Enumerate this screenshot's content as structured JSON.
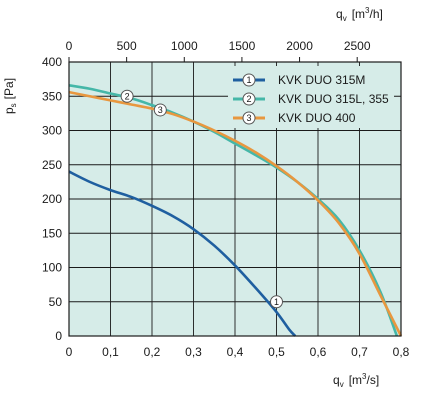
{
  "chart_data": {
    "type": "line",
    "colors": {
      "plot_bg": "#d6ece8",
      "grid": "#1a1a1a"
    },
    "x_bottom": {
      "label": "q",
      "label_sub": "v",
      "unit": "[m",
      "unit_sup": "3",
      "unit_end": "/s]",
      "range": [
        0,
        0.8
      ],
      "ticks": [
        0,
        0.1,
        0.2,
        0.3,
        0.4,
        0.5,
        0.6,
        0.7,
        0.8
      ],
      "tick_labels": [
        "0",
        "0,1",
        "0,2",
        "0,3",
        "0,4",
        "0,5",
        "0,6",
        "0,7",
        "0,8"
      ]
    },
    "x_top": {
      "label": "q",
      "label_sub": "v",
      "unit": "[m",
      "unit_sup": "3",
      "unit_end": "/h]",
      "range": [
        0,
        2880
      ],
      "ticks": [
        0,
        500,
        1000,
        1500,
        2000,
        2500
      ],
      "tick_labels": [
        "0",
        "500",
        "1000",
        "1500",
        "2000",
        "2500"
      ]
    },
    "y": {
      "label": "p",
      "label_sub": "s",
      "unit": "[Pa]",
      "range": [
        0,
        400
      ],
      "ticks": [
        0,
        50,
        100,
        150,
        200,
        250,
        300,
        350,
        400
      ],
      "tick_labels": [
        "0",
        "50",
        "100",
        "150",
        "200",
        "250",
        "300",
        "350",
        "400"
      ]
    },
    "grid": true,
    "legend_position": "top-right",
    "series": [
      {
        "marker": "1",
        "name": "KVK DUO 315M",
        "color": "#1f5fa0",
        "marker_at": [
          0.5,
          50
        ],
        "points": [
          [
            0,
            240
          ],
          [
            0.05,
            225
          ],
          [
            0.1,
            213
          ],
          [
            0.15,
            203
          ],
          [
            0.2,
            190
          ],
          [
            0.25,
            175
          ],
          [
            0.3,
            156
          ],
          [
            0.35,
            132
          ],
          [
            0.4,
            103
          ],
          [
            0.45,
            70
          ],
          [
            0.5,
            35
          ],
          [
            0.53,
            10
          ],
          [
            0.545,
            0
          ]
        ]
      },
      {
        "marker": "2",
        "name": "KVK DUO 315L, 355",
        "color": "#45b7a8",
        "marker_at": [
          0.14,
          350
        ],
        "points": [
          [
            0,
            366
          ],
          [
            0.05,
            361
          ],
          [
            0.1,
            354
          ],
          [
            0.15,
            347
          ],
          [
            0.2,
            337
          ],
          [
            0.25,
            326
          ],
          [
            0.3,
            313
          ],
          [
            0.35,
            298
          ],
          [
            0.4,
            281
          ],
          [
            0.45,
            264
          ],
          [
            0.5,
            246
          ],
          [
            0.55,
            225
          ],
          [
            0.6,
            200
          ],
          [
            0.65,
            170
          ],
          [
            0.7,
            125
          ],
          [
            0.75,
            65
          ],
          [
            0.79,
            0
          ]
        ]
      },
      {
        "marker": "3",
        "name": "KVK DUO 400",
        "color": "#e8973f",
        "marker_at": [
          0.22,
          330
        ],
        "points": [
          [
            0,
            356
          ],
          [
            0.05,
            350
          ],
          [
            0.1,
            344
          ],
          [
            0.15,
            338
          ],
          [
            0.2,
            332
          ],
          [
            0.25,
            324
          ],
          [
            0.3,
            313
          ],
          [
            0.35,
            300
          ],
          [
            0.4,
            285
          ],
          [
            0.45,
            268
          ],
          [
            0.5,
            248
          ],
          [
            0.55,
            225
          ],
          [
            0.6,
            198
          ],
          [
            0.65,
            165
          ],
          [
            0.7,
            120
          ],
          [
            0.75,
            60
          ],
          [
            0.8,
            0
          ]
        ]
      }
    ]
  }
}
